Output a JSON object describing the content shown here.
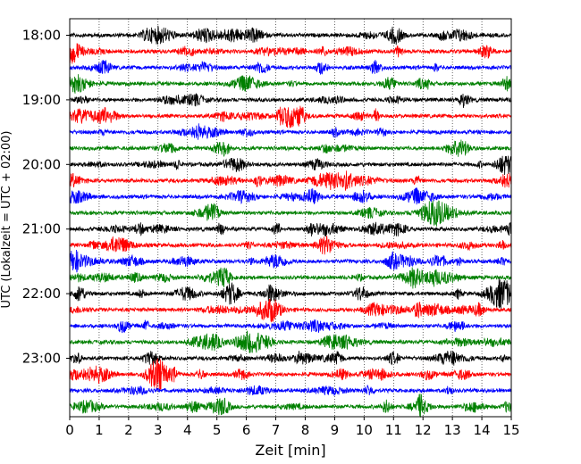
{
  "chart_data": {
    "type": "line",
    "chart_kind": "helicorder",
    "title": "",
    "xlabel": "Zeit  [min]",
    "ylabel": "UTC (Lokalzeit = UTC + 02:00)",
    "xlim": [
      0,
      15
    ],
    "x_ticks": [
      "0",
      "1",
      "2",
      "3",
      "4",
      "5",
      "6",
      "7",
      "8",
      "9",
      "10",
      "11",
      "12",
      "13",
      "14",
      "15"
    ],
    "y_hour_labels": [
      "18:00",
      "19:00",
      "20:00",
      "21:00",
      "22:00",
      "23:00"
    ],
    "grid": "vertical dotted lines at each minute",
    "trace_interval_minutes": 15,
    "trace_colors": [
      "#000000",
      "#ff0000",
      "#0000ff",
      "#008000"
    ],
    "series": [
      {
        "start": "18:00",
        "color": "#000000"
      },
      {
        "start": "18:15",
        "color": "#ff0000"
      },
      {
        "start": "18:30",
        "color": "#0000ff"
      },
      {
        "start": "18:45",
        "color": "#008000"
      },
      {
        "start": "19:00",
        "color": "#000000"
      },
      {
        "start": "19:15",
        "color": "#ff0000"
      },
      {
        "start": "19:30",
        "color": "#0000ff"
      },
      {
        "start": "19:45",
        "color": "#008000"
      },
      {
        "start": "20:00",
        "color": "#000000"
      },
      {
        "start": "20:15",
        "color": "#ff0000"
      },
      {
        "start": "20:30",
        "color": "#0000ff"
      },
      {
        "start": "20:45",
        "color": "#008000"
      },
      {
        "start": "21:00",
        "color": "#000000"
      },
      {
        "start": "21:15",
        "color": "#ff0000"
      },
      {
        "start": "21:30",
        "color": "#0000ff"
      },
      {
        "start": "21:45",
        "color": "#008000"
      },
      {
        "start": "22:00",
        "color": "#000000"
      },
      {
        "start": "22:15",
        "color": "#ff0000"
      },
      {
        "start": "22:30",
        "color": "#0000ff"
      },
      {
        "start": "22:45",
        "color": "#008000"
      },
      {
        "start": "23:00",
        "color": "#000000"
      },
      {
        "start": "23:15",
        "color": "#ff0000"
      },
      {
        "start": "23:30",
        "color": "#0000ff"
      },
      {
        "start": "23:45",
        "color": "#008000"
      }
    ]
  }
}
